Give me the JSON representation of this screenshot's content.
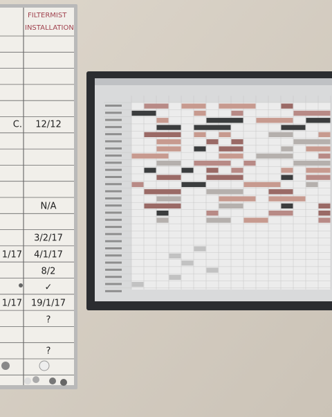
{
  "whiteboard": {
    "header": [
      "FILTERMIST",
      "INSTALLATION"
    ],
    "rows": [
      {
        "left": "C.",
        "right": "12/12"
      },
      {
        "left": null,
        "right": "N/A"
      },
      {
        "left": null,
        "right": "3/2/17"
      },
      {
        "left": "1/17",
        "right": "4/1/17"
      },
      {
        "left": null,
        "right": "8/2"
      },
      {
        "left": null,
        "right": "✓"
      },
      {
        "left": "1/17",
        "right": "19/1/17"
      },
      {
        "left": null,
        "right": "?"
      },
      {
        "left": null,
        "right": "?"
      }
    ]
  }
}
